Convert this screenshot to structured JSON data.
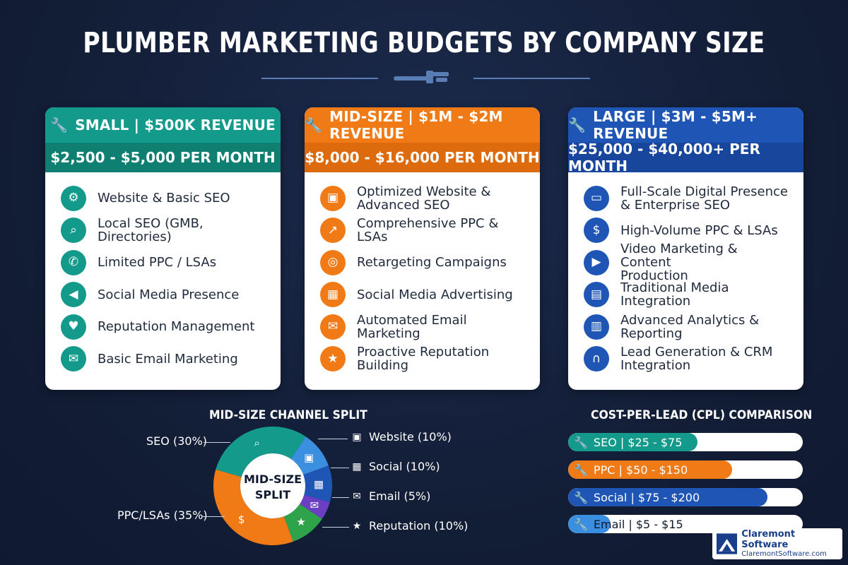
{
  "title": "PLUMBER MARKETING BUDGETS BY COMPANY SIZE",
  "cards": {
    "small": {
      "header": "SMALL | $500K REVENUE",
      "budget": "$2,500 - $5,000 PER MONTH",
      "color": "#149a8a",
      "items": [
        {
          "label": "Website & Basic SEO",
          "icon": "browser-gear-icon"
        },
        {
          "label": "Local SEO (GMB, Directories)",
          "icon": "magnifier-icon"
        },
        {
          "label": "Limited PPC / LSAs",
          "icon": "phone-dollar-icon"
        },
        {
          "label": "Social Media Presence",
          "icon": "megaphone-icon"
        },
        {
          "label": "Reputation Management",
          "icon": "chat-heart-icon"
        },
        {
          "label": "Basic Email Marketing",
          "icon": "envelope-icon"
        }
      ]
    },
    "mid": {
      "header": "MID-SIZE | $1M - $2M REVENUE",
      "budget": "$8,000 - $16,000 PER MONTH",
      "color": "#f07a16",
      "items": [
        {
          "label": "Optimized Website &",
          "label2": "Advanced SEO",
          "icon": "browser-cursor-icon"
        },
        {
          "label": "Comprehensive PPC & LSAs",
          "icon": "growth-chart-icon"
        },
        {
          "label": "Retargeting Campaigns",
          "icon": "target-icon"
        },
        {
          "label": "Social Media Advertising",
          "icon": "social-grid-icon"
        },
        {
          "label": "Automated Email Marketing",
          "icon": "email-gear-icon"
        },
        {
          "label": "Proactive Reputation Building",
          "icon": "star-check-icon"
        }
      ]
    },
    "large": {
      "header": "LARGE | $3M - $5M+ REVENUE",
      "budget": "$25,000 - $40,000+ PER MONTH",
      "color": "#1f56b6",
      "items": [
        {
          "label": "Full-Scale Digital Presence",
          "label2": "& Enterprise SEO",
          "icon": "devices-icon"
        },
        {
          "label": "High-Volume PPC & LSAs",
          "icon": "money-icon"
        },
        {
          "label": "Video Marketing & Content",
          "label2": "Production",
          "icon": "play-icon"
        },
        {
          "label": "Traditional Media Integration",
          "icon": "billboard-icon"
        },
        {
          "label": "Advanced Analytics &",
          "label2": "Reporting",
          "icon": "analytics-icon"
        },
        {
          "label": "Lead Generation & CRM",
          "label2": "Integration",
          "icon": "magnet-icon"
        }
      ]
    }
  },
  "channel_split": {
    "title": "MID-SIZE CHANNEL SPLIT",
    "center_line1": "MID-SIZE",
    "center_line2": "SPLIT",
    "labels": {
      "seo": "SEO (30%)",
      "ppc": "PPC/LSAs (35%)",
      "website": "Website (10%)",
      "social": "Social (10%)",
      "email": "Email (5%)",
      "reputation": "Reputation (10%)"
    }
  },
  "chart_data": {
    "type": "pie",
    "categories": [
      "SEO",
      "Website",
      "Social",
      "Email",
      "Reputation",
      "PPC/LSAs"
    ],
    "values": [
      30,
      10,
      10,
      5,
      10,
      35
    ],
    "colors": [
      "#149a8a",
      "#3b8fe0",
      "#1f56b6",
      "#6a3fc1",
      "#2fa34a",
      "#f07a16"
    ],
    "unit": "%"
  },
  "cpl": {
    "title": "COST-PER-LEAD (CPL) COMPARISON",
    "bars": [
      {
        "label": "SEO | $25 - $75",
        "fill": 0.55,
        "color": "#149a8a"
      },
      {
        "label": "PPC | $50 - $150",
        "fill": 0.7,
        "color": "#f07a16"
      },
      {
        "label": "Social | $75 - $200",
        "fill": 0.85,
        "color": "#1f56b6"
      },
      {
        "label": "Email | $5 - $15",
        "fill": 0.18,
        "color": "#3b8fe0"
      }
    ]
  },
  "logo": {
    "name": "Claremont Software",
    "url": "ClaremontSoftware.com"
  }
}
